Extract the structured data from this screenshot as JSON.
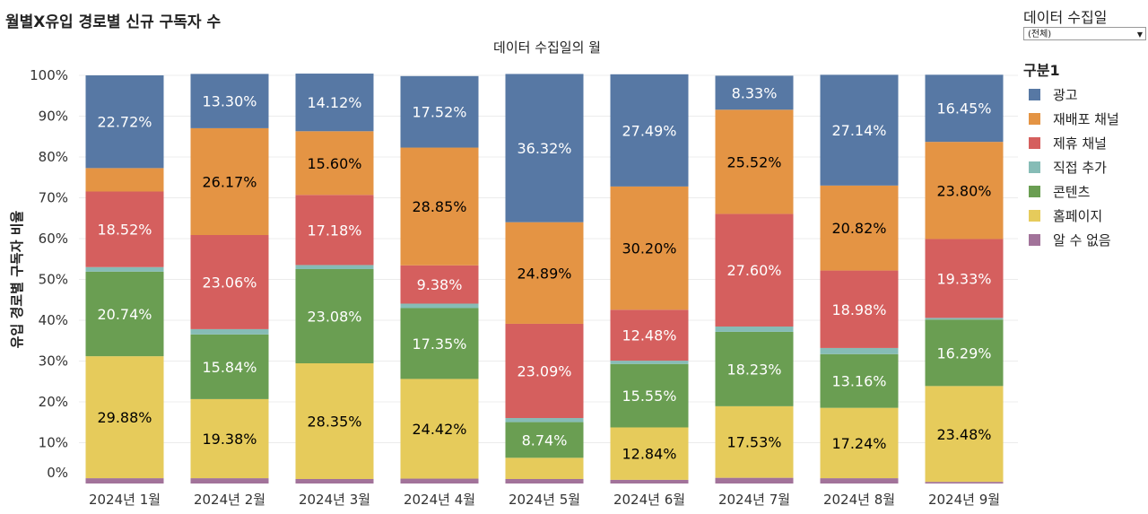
{
  "header": {
    "title": "월별X유입 경로별 신규 구독자 수",
    "subtitle": "데이터 수집일의 월"
  },
  "filter": {
    "title": "데이터  수집일",
    "selected": "(전체)"
  },
  "legend": {
    "title": "구분1"
  },
  "chart_data": {
    "type": "bar",
    "stacked": true,
    "percent": true,
    "title": "월별X유입 경로별 신규 구독자 수",
    "xlabel": "데이터 수집일의 월",
    "ylabel": "유입 경로별 구독자 비율",
    "ylim": [
      0,
      100
    ],
    "yticks": [
      "0%",
      "10%",
      "20%",
      "30%",
      "40%",
      "50%",
      "60%",
      "70%",
      "80%",
      "90%",
      "100%"
    ],
    "categories": [
      "2024년 1월",
      "2024년 2월",
      "2024년 3월",
      "2024년 4월",
      "2024년 5월",
      "2024년 6월",
      "2024년 7월",
      "2024년 8월",
      "2024년 9월"
    ],
    "series": [
      {
        "name": "알 수 없음",
        "color": "#a2739a",
        "values": [
          1.3,
          1.3,
          1.1,
          1.2,
          1.1,
          0.9,
          1.4,
          1.3,
          0.4
        ],
        "labels": [
          "",
          "",
          "",
          "",
          "",
          "",
          "",
          "",
          ""
        ],
        "label_color": "#000000"
      },
      {
        "name": "홈페이지",
        "color": "#e6cb5b",
        "values": [
          29.88,
          19.38,
          28.35,
          24.42,
          5.2,
          12.84,
          17.53,
          17.24,
          23.48
        ],
        "labels": [
          "29.88%",
          "19.38%",
          "28.35%",
          "24.42%",
          "",
          "12.84%",
          "17.53%",
          "17.24%",
          "23.48%"
        ],
        "label_color": "#000000"
      },
      {
        "name": "콘텐츠",
        "color": "#6a9e52",
        "values": [
          20.74,
          15.84,
          23.08,
          17.35,
          8.74,
          15.55,
          18.23,
          13.16,
          16.29
        ],
        "labels": [
          "20.74%",
          "15.84%",
          "23.08%",
          "17.35%",
          "8.74%",
          "15.55%",
          "18.23%",
          "13.16%",
          "16.29%"
        ],
        "label_color": "#ffffff"
      },
      {
        "name": "직접 추가",
        "color": "#86bcb6",
        "values": [
          1.1,
          1.3,
          1.0,
          1.1,
          1.0,
          0.8,
          1.3,
          1.5,
          0.4
        ],
        "labels": [
          "",
          "",
          "",
          "",
          "",
          "",
          "",
          "",
          ""
        ],
        "label_color": "#000000"
      },
      {
        "name": "제휴 채널",
        "color": "#d55f5e",
        "values": [
          18.52,
          23.06,
          17.18,
          9.38,
          23.09,
          12.48,
          27.6,
          18.98,
          19.33
        ],
        "labels": [
          "18.52%",
          "23.06%",
          "17.18%",
          "9.38%",
          "23.09%",
          "12.48%",
          "27.60%",
          "18.98%",
          "19.33%"
        ],
        "label_color": "#ffffff"
      },
      {
        "name": "재배포 채널",
        "color": "#e49444",
        "values": [
          5.74,
          26.17,
          15.6,
          28.85,
          24.89,
          30.2,
          25.52,
          20.82,
          23.8
        ],
        "labels": [
          "",
          "26.17%",
          "15.60%",
          "28.85%",
          "24.89%",
          "30.20%",
          "25.52%",
          "20.82%",
          "23.80%"
        ],
        "label_color": "#000000"
      },
      {
        "name": "광고",
        "color": "#5778a4",
        "values": [
          22.72,
          13.3,
          14.12,
          17.52,
          36.32,
          27.49,
          8.33,
          27.14,
          16.45
        ],
        "labels": [
          "22.72%",
          "13.30%",
          "14.12%",
          "17.52%",
          "36.32%",
          "27.49%",
          "8.33%",
          "27.14%",
          "16.45%"
        ],
        "label_color": "#ffffff"
      }
    ],
    "legend_order": [
      "광고",
      "재배포 채널",
      "제휴 채널",
      "직접 추가",
      "콘텐츠",
      "홈페이지",
      "알 수 없음"
    ],
    "grid": true,
    "legend_position": "right"
  }
}
